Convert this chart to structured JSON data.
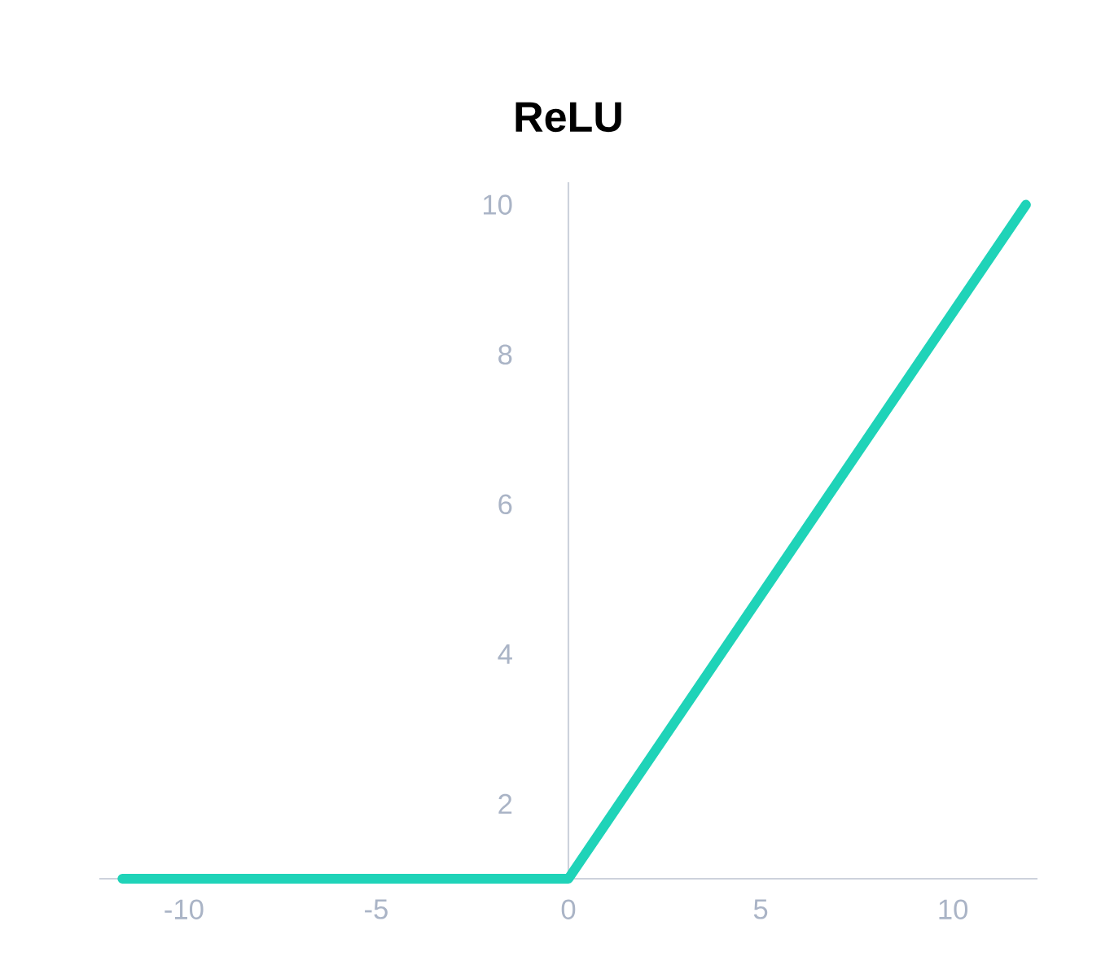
{
  "chart_data": {
    "type": "line",
    "title": "ReLU",
    "x": [
      -11.6,
      0,
      11.9
    ],
    "series": [
      {
        "color": "#1fd3b8",
        "values": [
          1,
          1,
          10
        ]
      }
    ],
    "xlim": [
      -12.2,
      12.2
    ],
    "ylim": [
      1,
      10.3
    ],
    "xticks": [
      -10,
      -5,
      0,
      5,
      10
    ],
    "yticks": [
      2,
      4,
      6,
      8,
      10
    ],
    "grid": false,
    "line_style": "solid",
    "marker": "none"
  }
}
